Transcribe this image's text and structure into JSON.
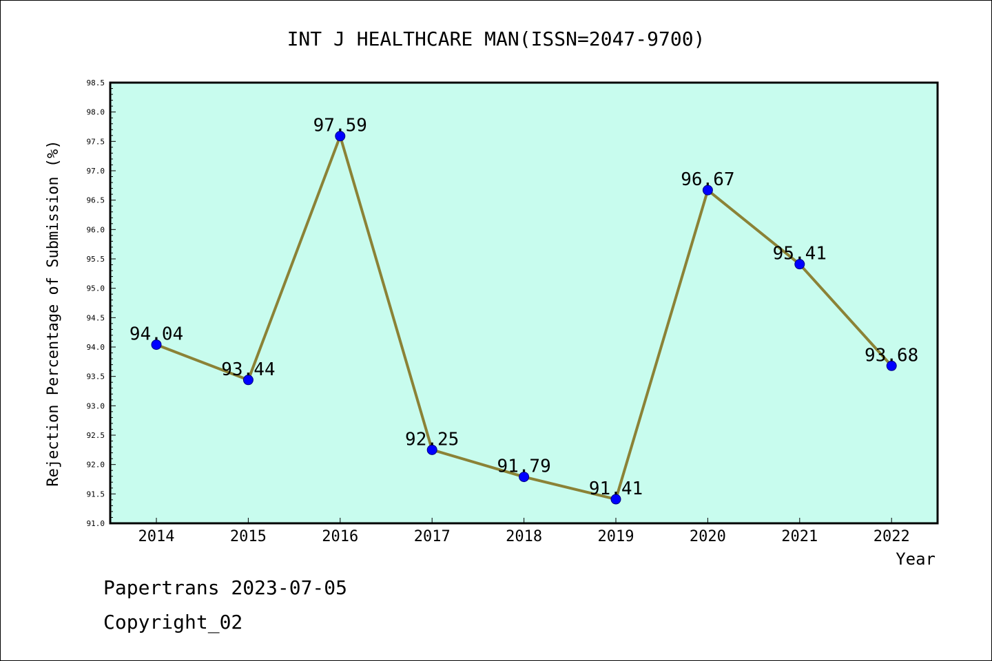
{
  "chart_data": {
    "type": "line",
    "title": "INT J HEALTHCARE MAN(ISSN=2047-9700)",
    "xlabel": "Year",
    "ylabel": "Rejection Percentage of Submission (%)",
    "categories": [
      "2014",
      "2015",
      "2016",
      "2017",
      "2018",
      "2019",
      "2020",
      "2021",
      "2022"
    ],
    "series": [
      {
        "values": [
          94.04,
          93.44,
          97.59,
          92.25,
          91.79,
          91.41,
          96.67,
          95.41,
          93.68
        ],
        "data_labels": [
          "94.04",
          "93.44",
          "97.59",
          "92.25",
          "91.79",
          "91.41",
          "96.67",
          "95.41",
          "93.68"
        ]
      }
    ],
    "ylim": [
      91.0,
      98.5
    ],
    "yticks": [
      "91.0",
      "91.5",
      "92.0",
      "92.5",
      "93.0",
      "93.5",
      "94.0",
      "94.5",
      "95.0",
      "95.5",
      "96.0",
      "96.5",
      "97.0",
      "97.5",
      "98.0",
      "98.5"
    ],
    "grid": false,
    "legend": "none",
    "colors": {
      "plot_background": "#c8fcee",
      "line": "#8b8236",
      "marker": "#0000ff"
    }
  },
  "footer": {
    "line1": "Papertrans 2023-07-05",
    "line2": "Copyright_02"
  }
}
